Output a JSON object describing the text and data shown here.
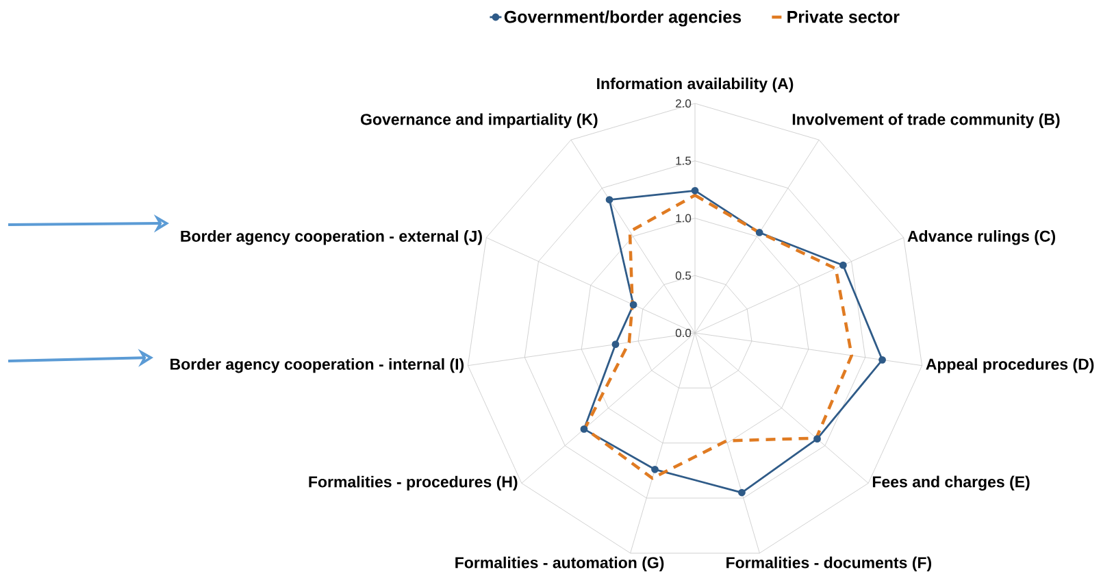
{
  "chart_data": {
    "type": "radar",
    "categories": [
      "Information availability (A)",
      "Involvement of trade community (B)",
      "Advance rulings (C)",
      "Appeal procedures (D)",
      "Fees and charges (E)",
      "Formalities - documents (F)",
      "Formalities - automation (G)",
      "Formalities - procedures (H)",
      "Border agency cooperation - internal (I)",
      "Border agency cooperation - external (J)",
      "Governance and impartiality (K)"
    ],
    "series": [
      {
        "name": "Government/border agencies",
        "color": "#2f5b88",
        "marker": "circle",
        "line_style": "solid",
        "values": [
          1.24,
          1.04,
          1.42,
          1.65,
          1.41,
          1.45,
          1.24,
          1.28,
          0.7,
          0.59,
          1.38
        ]
      },
      {
        "name": "Private sector",
        "color": "#e07b22",
        "marker": "none",
        "line_style": "dashed",
        "values": [
          1.2,
          1.04,
          1.35,
          1.38,
          1.4,
          0.98,
          1.32,
          1.27,
          0.58,
          0.6,
          1.05
        ]
      }
    ],
    "ylim": [
      0,
      2
    ],
    "yticks": [
      {
        "value": 0,
        "label": "0.0"
      },
      {
        "value": 0.5,
        "label": "0.5"
      },
      {
        "value": 1,
        "label": "1.0"
      },
      {
        "value": 1.5,
        "label": "1.5"
      },
      {
        "value": 2,
        "label": "2.0"
      }
    ],
    "grid": true,
    "legend": "top"
  }
}
